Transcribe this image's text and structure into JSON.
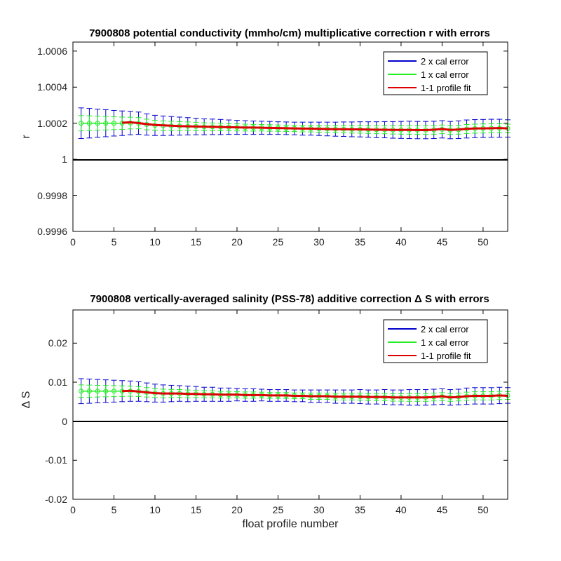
{
  "figure": {
    "xlabel": "float profile number"
  },
  "chart_data": [
    {
      "type": "line",
      "title": "7900808 potential conductivity (mmho/cm) multiplicative correction r with errors",
      "xlabel": "",
      "ylabel": "r",
      "xlim": [
        0,
        53
      ],
      "ylim": [
        0.9996,
        1.00065
      ],
      "xticks": [
        0,
        5,
        10,
        15,
        20,
        25,
        30,
        35,
        40,
        45,
        50
      ],
      "yticks": [
        0.9996,
        0.9998,
        1,
        1.0002,
        1.0004,
        1.0006
      ],
      "ytick_labels": [
        "0.9996",
        "0.9998",
        "1",
        "1.0002",
        "1.0004",
        "1.0006"
      ],
      "reference_line": 1,
      "legend_position": "top-right",
      "x": [
        1,
        2,
        3,
        4,
        5,
        6,
        7,
        8,
        9,
        10,
        11,
        12,
        13,
        14,
        15,
        16,
        17,
        18,
        19,
        20,
        21,
        22,
        23,
        24,
        25,
        26,
        27,
        28,
        29,
        30,
        31,
        32,
        33,
        34,
        35,
        36,
        37,
        38,
        39,
        40,
        41,
        42,
        43,
        44,
        45,
        46,
        47,
        48,
        49,
        50,
        51,
        52,
        53
      ],
      "center": [
        1.0002,
        1.0002,
        1.0002,
        1.0002,
        1.0002,
        1.0002,
        1.000201,
        1.0002,
        1.000193,
        1.000188,
        1.000186,
        1.000185,
        1.000184,
        1.000183,
        1.000182,
        1.00018,
        1.00018,
        1.000179,
        1.000178,
        1.000177,
        1.000176,
        1.000175,
        1.000175,
        1.000174,
        1.000173,
        1.000172,
        1.000171,
        1.00017,
        1.00017,
        1.000169,
        1.000168,
        1.000167,
        1.000167,
        1.000166,
        1.000166,
        1.000165,
        1.000164,
        1.000164,
        1.000163,
        1.000163,
        1.000163,
        1.000162,
        1.000162,
        1.000163,
        1.000166,
        1.000162,
        1.000164,
        1.000168,
        1.00017,
        1.000171,
        1.000172,
        1.000172,
        1.000171
      ],
      "fit": [
        null,
        null,
        null,
        null,
        null,
        1.000203,
        1.000205,
        1.000201,
        1.000195,
        1.00019,
        1.000188,
        1.000186,
        1.000184,
        1.000183,
        1.000182,
        1.000181,
        1.00018,
        1.000179,
        1.000178,
        1.000177,
        1.000176,
        1.000176,
        1.000175,
        1.000174,
        1.000173,
        1.000172,
        1.000171,
        1.00017,
        1.00017,
        1.000169,
        1.000168,
        1.000167,
        1.000167,
        1.000166,
        1.000166,
        1.000165,
        1.000164,
        1.000164,
        1.000163,
        1.000163,
        1.000163,
        1.000162,
        1.000162,
        1.000164,
        1.000168,
        1.000163,
        1.000165,
        1.000169,
        1.000171,
        1.000171,
        1.000172,
        1.000173,
        1.000171
      ],
      "err2": [
        8.5e-05,
        8.2e-05,
        7.8e-05,
        7.5e-05,
        7.1e-05,
        6.8e-05,
        6.5e-05,
        6.2e-05,
        5.9e-05,
        5.6e-05,
        5.4e-05,
        5.2e-05,
        5e-05,
        4.8e-05,
        4.6e-05,
        4.4e-05,
        4.3e-05,
        4.2e-05,
        4e-05,
        3.9e-05,
        3.8e-05,
        3.7e-05,
        3.6e-05,
        3.6e-05,
        3.5e-05,
        3.5e-05,
        3.5e-05,
        3.6e-05,
        3.6e-05,
        3.7e-05,
        3.8e-05,
        3.9e-05,
        4e-05,
        4.1e-05,
        4.2e-05,
        4.3e-05,
        4.4e-05,
        4.5e-05,
        4.6e-05,
        4.7e-05,
        4.8e-05,
        4.8e-05,
        4.8e-05,
        4.8e-05,
        4.8e-05,
        4.8e-05,
        4.9e-05,
        5e-05,
        5e-05,
        5e-05,
        5e-05,
        5e-05,
        4.8e-05
      ],
      "err1": [
        4.25e-05,
        4.1e-05,
        3.9e-05,
        3.75e-05,
        3.55e-05,
        3.4e-05,
        3.25e-05,
        3.1e-05,
        2.95e-05,
        2.8e-05,
        2.7e-05,
        2.6e-05,
        2.5e-05,
        2.4e-05,
        2.3e-05,
        2.2e-05,
        2.15e-05,
        2.1e-05,
        2e-05,
        1.95e-05,
        1.9e-05,
        1.85e-05,
        1.8e-05,
        1.8e-05,
        1.75e-05,
        1.75e-05,
        1.75e-05,
        1.8e-05,
        1.8e-05,
        1.85e-05,
        1.9e-05,
        1.95e-05,
        2e-05,
        2.05e-05,
        2.1e-05,
        2.15e-05,
        2.2e-05,
        2.25e-05,
        2.3e-05,
        2.35e-05,
        2.4e-05,
        2.4e-05,
        2.4e-05,
        2.4e-05,
        2.4e-05,
        2.4e-05,
        2.45e-05,
        2.5e-05,
        2.5e-05,
        2.5e-05,
        2.5e-05,
        2.5e-05,
        2.4e-05
      ],
      "series": [
        {
          "name": "2 x cal error",
          "color": "#0000cc"
        },
        {
          "name": "1 x cal error",
          "color": "#22ee22"
        },
        {
          "name": "1-1 profile fit",
          "color": "#dd0000"
        }
      ]
    },
    {
      "type": "line",
      "title": "7900808 vertically-averaged salinity (PSS-78) additive correction Δ S with errors",
      "xlabel": "float profile number",
      "ylabel": "Δ S",
      "xlim": [
        0,
        53
      ],
      "ylim": [
        -0.02,
        0.0285
      ],
      "xticks": [
        0,
        5,
        10,
        15,
        20,
        25,
        30,
        35,
        40,
        45,
        50
      ],
      "yticks": [
        -0.02,
        -0.01,
        0,
        0.01,
        0.02
      ],
      "ytick_labels": [
        "-0.02",
        "-0.01",
        "0",
        "0.01",
        "0.02"
      ],
      "reference_line": 0,
      "legend_position": "top-right",
      "x": [
        1,
        2,
        3,
        4,
        5,
        6,
        7,
        8,
        9,
        10,
        11,
        12,
        13,
        14,
        15,
        16,
        17,
        18,
        19,
        20,
        21,
        22,
        23,
        24,
        25,
        26,
        27,
        28,
        29,
        30,
        31,
        32,
        33,
        34,
        35,
        36,
        37,
        38,
        39,
        40,
        41,
        42,
        43,
        44,
        45,
        46,
        47,
        48,
        49,
        50,
        51,
        52,
        53
      ],
      "center": [
        0.0077,
        0.0077,
        0.0077,
        0.0077,
        0.0077,
        0.0077,
        0.0077,
        0.0076,
        0.0074,
        0.0072,
        0.0071,
        0.0071,
        0.0071,
        0.007,
        0.007,
        0.0069,
        0.0069,
        0.0068,
        0.0068,
        0.0068,
        0.0067,
        0.0067,
        0.0067,
        0.0066,
        0.0066,
        0.0066,
        0.0065,
        0.0065,
        0.0064,
        0.0064,
        0.0064,
        0.0063,
        0.0063,
        0.0063,
        0.0063,
        0.0062,
        0.0062,
        0.0062,
        0.0061,
        0.0061,
        0.0061,
        0.0061,
        0.0061,
        0.0062,
        0.0063,
        0.0061,
        0.0062,
        0.0064,
        0.0065,
        0.0065,
        0.0065,
        0.0066,
        0.0066
      ],
      "fit": [
        null,
        null,
        null,
        null,
        null,
        0.0077,
        0.0078,
        0.0076,
        0.0074,
        0.0072,
        0.0071,
        0.0071,
        0.0071,
        0.007,
        0.007,
        0.0069,
        0.0069,
        0.0068,
        0.0068,
        0.0068,
        0.0067,
        0.0067,
        0.0067,
        0.0066,
        0.0066,
        0.0066,
        0.0065,
        0.0065,
        0.0064,
        0.0064,
        0.0064,
        0.0063,
        0.0063,
        0.0063,
        0.0063,
        0.0062,
        0.0062,
        0.0062,
        0.0061,
        0.0061,
        0.0061,
        0.0061,
        0.0061,
        0.0062,
        0.0064,
        0.0061,
        0.0062,
        0.0064,
        0.0065,
        0.0065,
        0.0065,
        0.0066,
        0.0065
      ],
      "err2": [
        0.0032,
        0.0031,
        0.003,
        0.0029,
        0.0028,
        0.0027,
        0.0026,
        0.0025,
        0.0024,
        0.0023,
        0.0022,
        0.0021,
        0.002,
        0.002,
        0.0019,
        0.0018,
        0.0018,
        0.0017,
        0.0017,
        0.0016,
        0.0016,
        0.0016,
        0.0015,
        0.0015,
        0.0015,
        0.0015,
        0.0015,
        0.0015,
        0.0016,
        0.0016,
        0.0016,
        0.0017,
        0.0017,
        0.0017,
        0.0018,
        0.0018,
        0.0018,
        0.0019,
        0.0019,
        0.0019,
        0.002,
        0.002,
        0.002,
        0.002,
        0.002,
        0.002,
        0.002,
        0.0021,
        0.0021,
        0.0021,
        0.0021,
        0.0021,
        0.002
      ],
      "err1": [
        0.0016,
        0.00155,
        0.0015,
        0.00145,
        0.0014,
        0.00135,
        0.0013,
        0.00125,
        0.0012,
        0.00115,
        0.0011,
        0.00105,
        0.001,
        0.001,
        0.00095,
        0.0009,
        0.0009,
        0.00085,
        0.00085,
        0.0008,
        0.0008,
        0.0008,
        0.00075,
        0.00075,
        0.00075,
        0.00075,
        0.00075,
        0.00075,
        0.0008,
        0.0008,
        0.0008,
        0.00085,
        0.00085,
        0.00085,
        0.0009,
        0.0009,
        0.0009,
        0.00095,
        0.00095,
        0.00095,
        0.001,
        0.001,
        0.001,
        0.001,
        0.001,
        0.001,
        0.001,
        0.00105,
        0.00105,
        0.00105,
        0.00105,
        0.00105,
        0.001
      ],
      "series": [
        {
          "name": "2 x cal error",
          "color": "#0000cc"
        },
        {
          "name": "1 x cal error",
          "color": "#22ee22"
        },
        {
          "name": "1-1 profile fit",
          "color": "#dd0000"
        }
      ]
    }
  ]
}
